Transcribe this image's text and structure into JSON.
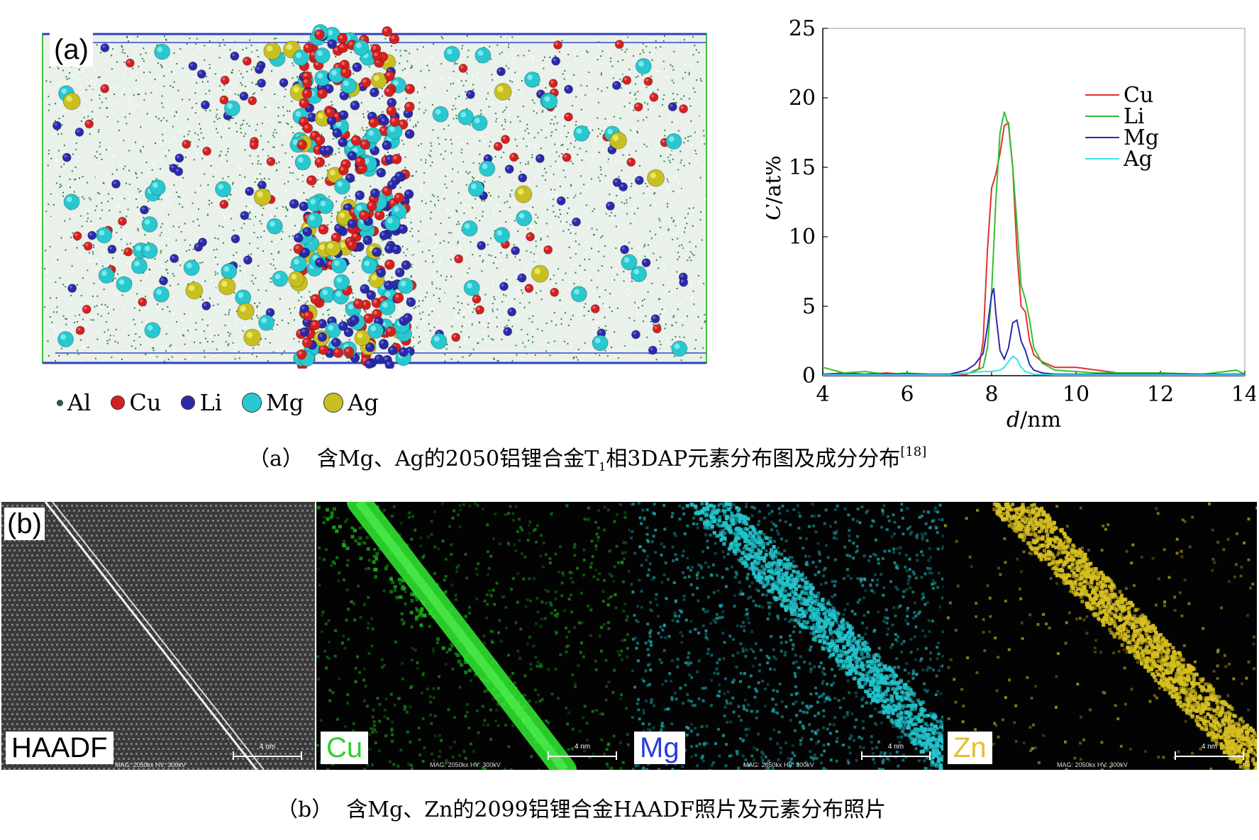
{
  "panel_a": {
    "label": "(a)",
    "legend": [
      {
        "symbol": "Al",
        "color": "#1a6b3c"
      },
      {
        "symbol": "Cu",
        "color": "#d42020"
      },
      {
        "symbol": "Li",
        "color": "#2a2aa8"
      },
      {
        "symbol": "Mg",
        "color": "#27c8d0"
      },
      {
        "symbol": "Ag",
        "color": "#c8c020"
      }
    ],
    "caption": {
      "prefix": "（a）",
      "text": "含Mg、Ag的2050铝锂合金T",
      "sub": "1",
      "text2": "相3DAP元素分布图及成分分布",
      "ref": "[18]"
    }
  },
  "chart_data": {
    "type": "line",
    "xlabel_italic": "d",
    "xlabel_unit": "/nm",
    "ylabel_italic": "C",
    "ylabel_unit": "/at%",
    "xlim": [
      4,
      14
    ],
    "ylim": [
      0,
      25
    ],
    "xticks": [
      "4",
      "6",
      "8",
      "10",
      "12",
      "14"
    ],
    "yticks": [
      "0",
      "5",
      "10",
      "15",
      "20",
      "25"
    ],
    "grid": false,
    "legend_position": "top-right",
    "series": [
      {
        "name": "Cu",
        "color": "#e03030",
        "x": [
          4.0,
          4.5,
          5.0,
          5.5,
          6.0,
          6.5,
          7.0,
          7.4,
          7.7,
          7.8,
          7.9,
          8.0,
          8.1,
          8.2,
          8.3,
          8.4,
          8.5,
          8.6,
          8.7,
          8.8,
          8.9,
          9.0,
          9.2,
          9.5,
          10.0,
          10.5,
          11.0,
          12.0,
          13.0,
          14.0
        ],
        "y": [
          0.1,
          0.2,
          0.1,
          0.2,
          0.1,
          0.1,
          0.1,
          0.1,
          0.5,
          2.5,
          9.0,
          13.5,
          14.5,
          16.0,
          18.0,
          18.2,
          15.0,
          9.0,
          5.0,
          4.6,
          2.5,
          1.5,
          1.0,
          0.6,
          0.6,
          0.4,
          0.2,
          0.2,
          0.1,
          0.1
        ]
      },
      {
        "name": "Li",
        "color": "#30c030",
        "x": [
          4.0,
          4.5,
          5.0,
          5.5,
          6.0,
          6.5,
          7.0,
          7.5,
          7.8,
          7.9,
          8.0,
          8.1,
          8.2,
          8.3,
          8.4,
          8.5,
          8.6,
          8.7,
          8.8,
          8.9,
          9.0,
          9.2,
          9.5,
          10.0,
          10.5,
          11.0,
          12.0,
          13.0,
          13.8,
          14.0
        ],
        "y": [
          0.6,
          0.2,
          0.3,
          0.1,
          0.2,
          0.1,
          0.1,
          0.2,
          0.6,
          2.0,
          6.0,
          12.5,
          17.5,
          19.0,
          18.0,
          15.0,
          11.0,
          6.5,
          5.5,
          4.0,
          2.0,
          0.9,
          0.4,
          0.3,
          0.2,
          0.2,
          0.2,
          0.1,
          0.4,
          0.1
        ]
      },
      {
        "name": "Mg",
        "color": "#2a2ab0",
        "x": [
          4.0,
          5.0,
          6.0,
          7.0,
          7.4,
          7.6,
          7.8,
          7.9,
          8.0,
          8.05,
          8.1,
          8.2,
          8.3,
          8.4,
          8.5,
          8.6,
          8.7,
          8.8,
          8.9,
          9.0,
          9.2,
          9.5,
          10.0,
          11.0,
          12.0,
          13.0,
          14.0
        ],
        "y": [
          0.1,
          0.1,
          0.1,
          0.1,
          0.4,
          0.8,
          1.6,
          3.5,
          5.8,
          6.3,
          4.5,
          1.8,
          1.2,
          2.0,
          3.8,
          4.0,
          2.5,
          1.8,
          0.8,
          0.4,
          0.2,
          0.1,
          0.1,
          0.1,
          0.1,
          0.1,
          0.1
        ]
      },
      {
        "name": "Ag",
        "color": "#40e0e8",
        "x": [
          4.0,
          5.0,
          6.0,
          7.0,
          7.5,
          7.8,
          8.0,
          8.2,
          8.3,
          8.4,
          8.5,
          8.6,
          8.7,
          8.8,
          9.0,
          9.5,
          10.0,
          11.0,
          12.0,
          13.0,
          14.0
        ],
        "y": [
          0.05,
          0.05,
          0.05,
          0.05,
          0.2,
          0.3,
          0.3,
          0.4,
          0.6,
          1.0,
          1.4,
          1.2,
          0.6,
          0.3,
          0.1,
          0.05,
          0.05,
          0.05,
          0.05,
          0.05,
          0.05
        ]
      }
    ]
  },
  "panel_b": {
    "label": "(b)",
    "maps": [
      {
        "label": "HAADF",
        "label_color": "#000000",
        "scale": "4 nm",
        "info": "MAG: 2050kx   HV: 300kV"
      },
      {
        "label": "Cu",
        "label_color": "#30d030",
        "scale": "4 nm",
        "info": "MAG: 2050kx   HV: 300kV"
      },
      {
        "label": "Mg",
        "label_color": "#2a3ad8",
        "scale": "4 nm",
        "info": "MAG: 2050kx   HV: 300kV"
      },
      {
        "label": "Zn",
        "label_color": "#e0c030",
        "scale": "4 nm",
        "info": "MAG: 2050kx   HV: 300kV"
      }
    ],
    "caption": {
      "prefix": "（b）",
      "text": "含Mg、Zn的2099铝锂合金HAADF照片及元素分布照片"
    }
  }
}
